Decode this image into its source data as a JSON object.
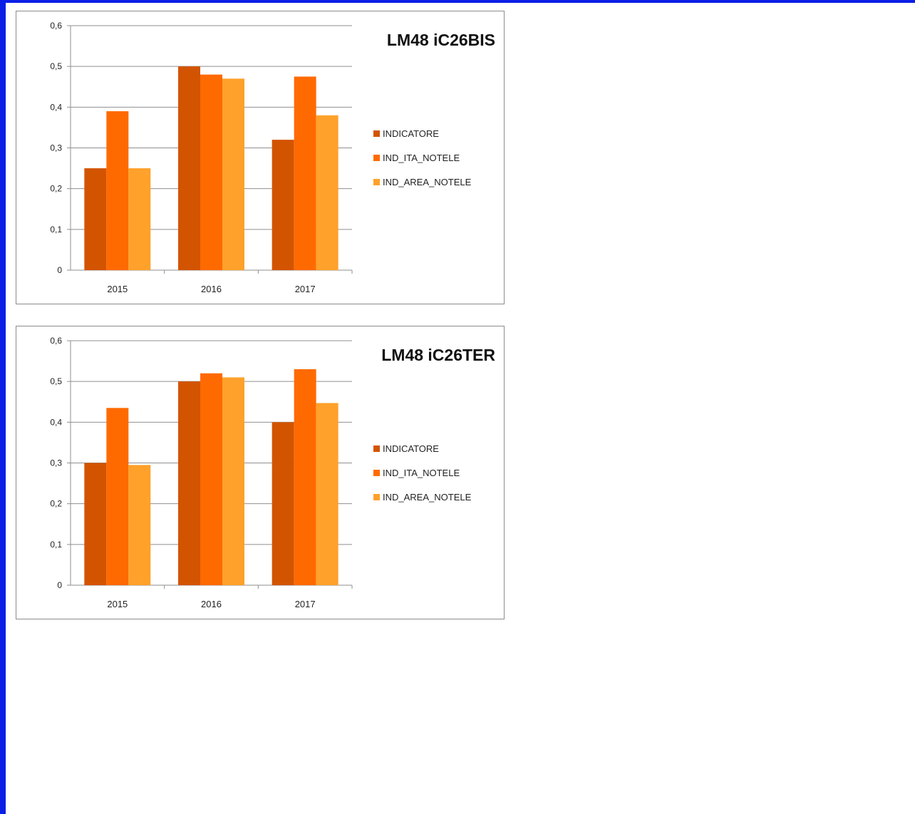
{
  "chart_data": [
    {
      "type": "bar",
      "title": "LM48 iC26BIS",
      "categories": [
        "2015",
        "2016",
        "2017"
      ],
      "series": [
        {
          "name": "INDICATORE",
          "values": [
            0.25,
            0.5,
            0.32
          ],
          "color": "#d35400"
        },
        {
          "name": "IND_ITA_NOTELE",
          "values": [
            0.39,
            0.48,
            0.475
          ],
          "color": "#ff6a00"
        },
        {
          "name": "IND_AREA_NOTELE",
          "values": [
            0.25,
            0.47,
            0.38
          ],
          "color": "#ffa12b"
        }
      ],
      "ylim": [
        0,
        0.6
      ],
      "yticks": [
        "0",
        "0,1",
        "0,2",
        "0,3",
        "0,4",
        "0,5",
        "0,6"
      ],
      "grid": true,
      "legend": "right"
    },
    {
      "type": "bar",
      "title": "LM48 iC26TER",
      "categories": [
        "2015",
        "2016",
        "2017"
      ],
      "series": [
        {
          "name": "INDICATORE",
          "values": [
            0.3,
            0.5,
            0.4
          ],
          "color": "#d35400"
        },
        {
          "name": "IND_ITA_NOTELE",
          "values": [
            0.435,
            0.52,
            0.53
          ],
          "color": "#ff6a00"
        },
        {
          "name": "IND_AREA_NOTELE",
          "values": [
            0.295,
            0.51,
            0.447
          ],
          "color": "#ffa12b"
        }
      ],
      "ylim": [
        0,
        0.6
      ],
      "yticks": [
        "0",
        "0,1",
        "0,2",
        "0,3",
        "0,4",
        "0,5",
        "0,6"
      ],
      "grid": true,
      "legend": "right"
    }
  ]
}
